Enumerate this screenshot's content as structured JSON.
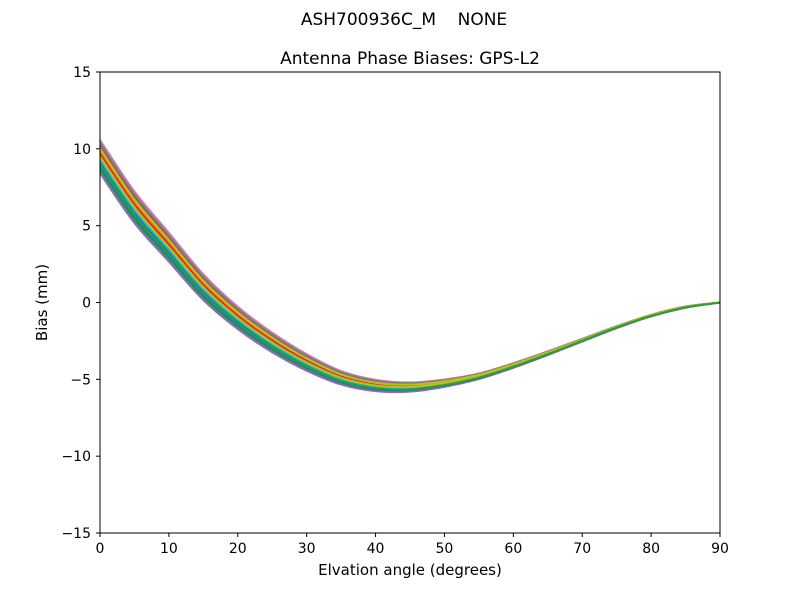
{
  "figure": {
    "background": "#ffffff",
    "axis_color": "#000000",
    "text_color": "#000000"
  },
  "chart_data": {
    "type": "line",
    "title": "ASH700936C_M    NONE",
    "subtitle": "Antenna Phase Biases: GPS-L2",
    "xlabel": "Elvation angle (degrees)",
    "ylabel": "Bias (mm)",
    "xlim": [
      0,
      90
    ],
    "ylim": [
      -15,
      15
    ],
    "xticks": [
      0,
      10,
      20,
      30,
      40,
      50,
      60,
      70,
      80,
      90
    ],
    "yticks": [
      -15,
      -10,
      -5,
      0,
      5,
      10,
      15
    ],
    "grid": false,
    "legend": "none",
    "line_width": 2,
    "x": [
      0,
      5,
      10,
      15,
      20,
      25,
      30,
      35,
      40,
      45,
      50,
      55,
      60,
      65,
      70,
      75,
      80,
      85,
      90
    ],
    "series": [
      {
        "name": "curve-01",
        "color": "#1f77b4",
        "values": [
          9.14,
          5.86,
          3.29,
          0.72,
          -1.24,
          -2.81,
          -4.08,
          -5.05,
          -5.52,
          -5.6,
          -5.33,
          -4.86,
          -4.15,
          -3.34,
          -2.48,
          -1.62,
          -0.87,
          -0.31,
          0.0
        ]
      },
      {
        "name": "curve-02",
        "color": "#ff7f0e",
        "values": [
          9.86,
          6.54,
          3.91,
          1.28,
          -0.76,
          -2.39,
          -3.72,
          -4.75,
          -5.28,
          -5.4,
          -5.17,
          -4.74,
          -4.05,
          -3.26,
          -2.42,
          -1.58,
          -0.83,
          -0.29,
          0.0
        ]
      },
      {
        "name": "curve-03",
        "color": "#2ca02c",
        "values": [
          8.6,
          5.35,
          2.82,
          0.3,
          -1.61,
          -3.13,
          -4.35,
          -5.27,
          -5.71,
          -5.75,
          -5.45,
          -4.95,
          -4.23,
          -3.4,
          -2.52,
          -1.65,
          -0.9,
          -0.33,
          0.0
        ]
      },
      {
        "name": "curve-04",
        "color": "#d62728",
        "values": [
          9.68,
          6.37,
          3.76,
          1.14,
          -0.88,
          -2.49,
          -3.81,
          -4.83,
          -5.34,
          -5.45,
          -5.21,
          -4.77,
          -4.08,
          -3.28,
          -2.44,
          -1.59,
          -0.84,
          -0.29,
          0.0
        ]
      },
      {
        "name": "curve-05",
        "color": "#9467bd",
        "values": [
          8.42,
          5.17,
          2.66,
          0.16,
          -1.73,
          -3.24,
          -4.44,
          -5.34,
          -5.77,
          -5.8,
          -5.49,
          -4.98,
          -4.25,
          -3.42,
          -2.54,
          -1.67,
          -0.9,
          -0.34,
          0.0
        ]
      },
      {
        "name": "curve-06",
        "color": "#8c564b",
        "values": [
          10.22,
          6.88,
          4.23,
          1.56,
          -0.51,
          -2.18,
          -3.54,
          -4.6,
          -5.16,
          -5.3,
          -5.09,
          -4.68,
          -4.0,
          -3.22,
          -2.39,
          -1.56,
          -0.81,
          -0.27,
          0.0
        ]
      },
      {
        "name": "curve-07",
        "color": "#e377c2",
        "values": [
          10.58,
          7.23,
          4.54,
          1.84,
          -0.27,
          -1.96,
          -3.36,
          -4.46,
          -5.03,
          -5.2,
          -5.01,
          -4.62,
          -3.95,
          -3.18,
          -2.36,
          -1.54,
          -0.8,
          -0.26,
          0.0
        ]
      },
      {
        "name": "curve-08",
        "color": "#7f7f7f",
        "values": [
          10.4,
          7.06,
          4.38,
          1.7,
          -0.39,
          -2.07,
          -3.45,
          -4.53,
          -5.09,
          -5.25,
          -5.05,
          -4.65,
          -3.97,
          -3.2,
          -2.38,
          -1.55,
          -0.81,
          -0.27,
          0.0
        ]
      },
      {
        "name": "curve-09",
        "color": "#bcbd22",
        "values": [
          10.04,
          6.71,
          4.07,
          1.42,
          -0.63,
          -2.28,
          -3.63,
          -4.68,
          -5.22,
          -5.35,
          -5.13,
          -4.71,
          -4.02,
          -3.24,
          -2.41,
          -1.57,
          -0.82,
          -0.28,
          0.0
        ]
      },
      {
        "name": "curve-10",
        "color": "#17becf",
        "values": [
          9.32,
          6.03,
          3.44,
          0.86,
          -1.12,
          -2.71,
          -3.99,
          -4.97,
          -5.46,
          -5.55,
          -5.29,
          -4.83,
          -4.12,
          -3.32,
          -2.46,
          -1.61,
          -0.86,
          -0.31,
          0.0
        ]
      },
      {
        "name": "curve-11",
        "color": "#1f77b4",
        "values": [
          8.78,
          5.52,
          2.97,
          0.44,
          -1.49,
          -3.02,
          -4.26,
          -5.2,
          -5.65,
          -5.7,
          -5.41,
          -4.92,
          -4.2,
          -3.38,
          -2.51,
          -1.64,
          -0.89,
          -0.33,
          0.0
        ]
      },
      {
        "name": "curve-12",
        "color": "#bcbd22",
        "values": [
          9.5,
          6.2,
          3.6,
          1.0,
          -1.0,
          -2.6,
          -3.9,
          -4.9,
          -5.4,
          -5.5,
          -5.25,
          -4.8,
          -4.1,
          -3.3,
          -2.45,
          -1.6,
          -0.85,
          -0.3,
          0.0
        ]
      },
      {
        "name": "curve-13",
        "color": "#2ca02c",
        "values": [
          8.96,
          5.69,
          3.13,
          0.58,
          -1.37,
          -2.92,
          -4.17,
          -5.12,
          -5.58,
          -5.65,
          -5.37,
          -4.89,
          -4.18,
          -3.36,
          -2.49,
          -1.63,
          -0.88,
          -0.32,
          0.0
        ]
      }
    ]
  }
}
